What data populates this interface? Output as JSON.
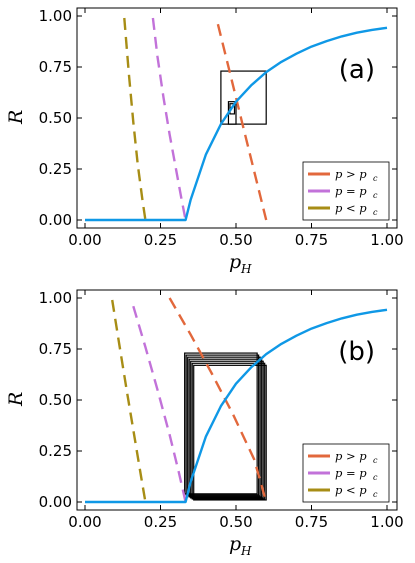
{
  "chart_data": [
    {
      "type": "line",
      "panel_label": "(a)",
      "xlabel": "p",
      "xlabel_sub": "H",
      "ylabel": "R",
      "xlim": [
        0,
        1
      ],
      "ylim": [
        0,
        1
      ],
      "xticks": [
        0,
        0.25,
        0.5,
        0.75,
        1
      ],
      "xtick_labels": [
        "0.00",
        "0.25",
        "0.50",
        "0.75",
        "1.00"
      ],
      "yticks": [
        0,
        0.25,
        0.5,
        0.75,
        1
      ],
      "ytick_labels": [
        "0.00",
        "0.25",
        "0.50",
        "0.75",
        "1.00"
      ],
      "grid": false,
      "legend_position": "bottom-right",
      "colors": {
        "solid": "#0f98e6",
        "above": "#e2683c",
        "equal": "#c272d9",
        "below": "#a78d15",
        "cobweb": "#000000"
      },
      "solid_curve": {
        "x": [
          0,
          0.05,
          0.1,
          0.15,
          0.2,
          0.25,
          0.3,
          0.333,
          0.35,
          0.4,
          0.45,
          0.5,
          0.55,
          0.6,
          0.65,
          0.7,
          0.75,
          0.8,
          0.85,
          0.9,
          0.95,
          1.0
        ],
        "y": [
          0,
          0,
          0,
          0,
          0,
          0,
          0,
          0,
          0.1,
          0.32,
          0.47,
          0.58,
          0.66,
          0.725,
          0.775,
          0.815,
          0.85,
          0.877,
          0.9,
          0.918,
          0.932,
          0.942
        ]
      },
      "dashed_series": [
        {
          "name": "p > p",
          "name_sub": "c",
          "key": "above",
          "x": [
            0.44,
            0.48,
            0.52,
            0.56,
            0.6
          ],
          "y": [
            0.96,
            0.72,
            0.48,
            0.24,
            0.0
          ]
        },
        {
          "name": "p = p",
          "name_sub": "c",
          "key": "equal",
          "x": [
            0.225,
            0.24,
            0.26,
            0.28,
            0.3,
            0.32,
            0.333
          ],
          "y": [
            0.99,
            0.8,
            0.6,
            0.42,
            0.26,
            0.1,
            0.0
          ]
        },
        {
          "name": "p < p",
          "name_sub": "c",
          "key": "below",
          "x": [
            0.13,
            0.145,
            0.16,
            0.175,
            0.19,
            0.2
          ],
          "y": [
            0.99,
            0.72,
            0.48,
            0.27,
            0.1,
            0.0
          ]
        }
      ],
      "cobweb_boxes": [
        {
          "x": [
            0.45,
            0.6
          ],
          "y": [
            0.47,
            0.73
          ],
          "open_side": "right"
        },
        {
          "x": [
            0.475,
            0.5
          ],
          "y": [
            0.47,
            0.58
          ],
          "open_side": "none"
        },
        {
          "x": [
            0.48,
            0.495
          ],
          "y": [
            0.52,
            0.57
          ],
          "open_side": "none"
        }
      ]
    },
    {
      "type": "line",
      "panel_label": "(b)",
      "xlabel": "p",
      "xlabel_sub": "H",
      "ylabel": "R",
      "xlim": [
        0,
        1
      ],
      "ylim": [
        0,
        1
      ],
      "xticks": [
        0,
        0.25,
        0.5,
        0.75,
        1
      ],
      "xtick_labels": [
        "0.00",
        "0.25",
        "0.50",
        "0.75",
        "1.00"
      ],
      "yticks": [
        0,
        0.25,
        0.5,
        0.75,
        1
      ],
      "ytick_labels": [
        "0.00",
        "0.25",
        "0.50",
        "0.75",
        "1.00"
      ],
      "grid": false,
      "legend_position": "bottom-right",
      "colors": {
        "solid": "#0f98e6",
        "above": "#e2683c",
        "equal": "#c272d9",
        "below": "#a78d15",
        "cobweb": "#000000"
      },
      "solid_curve": {
        "x": [
          0,
          0.05,
          0.1,
          0.15,
          0.2,
          0.25,
          0.3,
          0.333,
          0.35,
          0.4,
          0.45,
          0.5,
          0.55,
          0.6,
          0.65,
          0.7,
          0.75,
          0.8,
          0.85,
          0.9,
          0.95,
          1.0
        ],
        "y": [
          0,
          0,
          0,
          0,
          0,
          0,
          0,
          0,
          0.1,
          0.32,
          0.47,
          0.58,
          0.66,
          0.725,
          0.775,
          0.815,
          0.85,
          0.877,
          0.9,
          0.918,
          0.932,
          0.942
        ]
      },
      "dashed_series": [
        {
          "name": "p > p",
          "name_sub": "c",
          "key": "above",
          "x": [
            0.28,
            0.35,
            0.42,
            0.49,
            0.56,
            0.6
          ],
          "y": [
            1.0,
            0.82,
            0.63,
            0.43,
            0.21,
            0.0
          ]
        },
        {
          "name": "p = p",
          "name_sub": "c",
          "key": "equal",
          "x": [
            0.16,
            0.2,
            0.24,
            0.28,
            0.31,
            0.333
          ],
          "y": [
            0.96,
            0.76,
            0.55,
            0.33,
            0.15,
            0.0
          ]
        },
        {
          "name": "p < p",
          "name_sub": "c",
          "key": "below",
          "x": [
            0.09,
            0.115,
            0.14,
            0.165,
            0.185,
            0.2
          ],
          "y": [
            0.99,
            0.76,
            0.53,
            0.31,
            0.13,
            0.0
          ]
        }
      ],
      "cobweb_boxes": [
        {
          "x": [
            0.33,
            0.57
          ],
          "y": [
            0.04,
            0.73
          ]
        },
        {
          "x": [
            0.335,
            0.575
          ],
          "y": [
            0.035,
            0.72
          ]
        },
        {
          "x": [
            0.34,
            0.58
          ],
          "y": [
            0.03,
            0.71
          ]
        },
        {
          "x": [
            0.345,
            0.585
          ],
          "y": [
            0.025,
            0.7
          ]
        },
        {
          "x": [
            0.35,
            0.59
          ],
          "y": [
            0.02,
            0.69
          ]
        },
        {
          "x": [
            0.355,
            0.595
          ],
          "y": [
            0.015,
            0.68
          ]
        },
        {
          "x": [
            0.36,
            0.6
          ],
          "y": [
            0.01,
            0.67
          ]
        }
      ]
    }
  ]
}
